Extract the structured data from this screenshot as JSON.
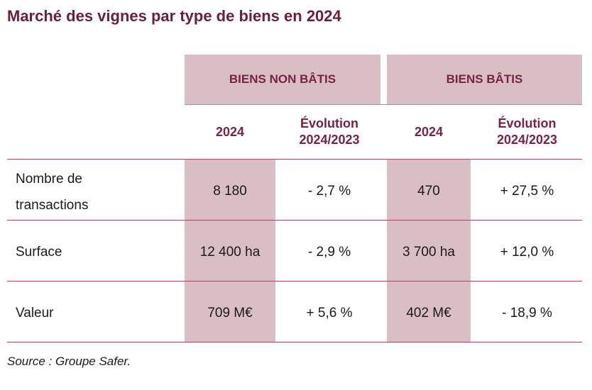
{
  "title": "Marché des vignes par type de biens en 2024",
  "groups": [
    {
      "label": "BIENS NON BÂTIS"
    },
    {
      "label": "BIENS BÂTIS"
    }
  ],
  "columns": [
    {
      "line1": "2024",
      "line2": ""
    },
    {
      "line1": "Évolution",
      "line2": "2024/2023"
    },
    {
      "line1": "2024",
      "line2": ""
    },
    {
      "line1": "Évolution",
      "line2": "2024/2023"
    }
  ],
  "rows": [
    {
      "label_line1": "Nombre de",
      "label_line2": "transactions",
      "cells": [
        "8 180",
        "- 2,7 %",
        "470",
        "+ 27,5 %"
      ]
    },
    {
      "label_line1": "Surface",
      "label_line2": "",
      "cells": [
        "12 400 ha",
        "- 2,9 %",
        "3 700 ha",
        "+ 12,0 %"
      ]
    },
    {
      "label_line1": "Valeur",
      "label_line2": "",
      "cells": [
        "709 M€",
        "+ 5,6 %",
        "402 M€",
        "- 18,9 %"
      ]
    }
  ],
  "source": "Source : Groupe Safer.",
  "colors": {
    "accent": "#7a2144",
    "shade": "#d9bfc3",
    "rule": "#9c4b68"
  }
}
